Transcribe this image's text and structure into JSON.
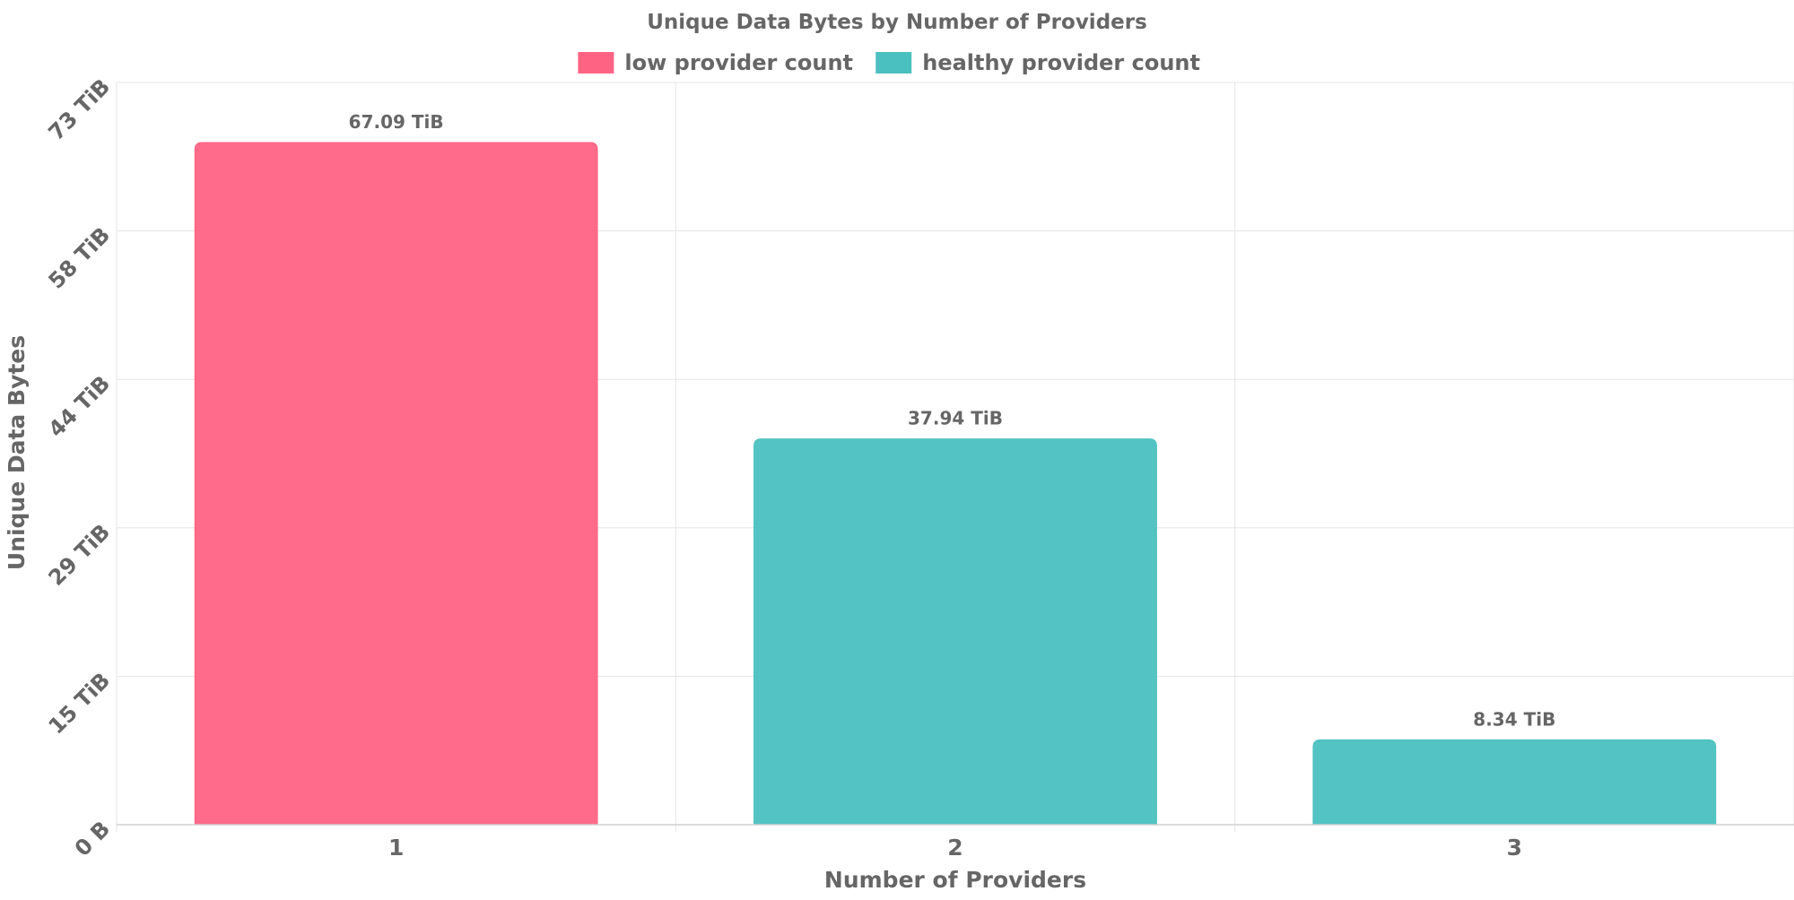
{
  "chart_data": {
    "type": "bar",
    "title": "Unique Data Bytes by Number of Providers",
    "xlabel": "Number of Providers",
    "ylabel": "Unique Data Bytes",
    "categories": [
      "1",
      "2",
      "3"
    ],
    "values": [
      67.09,
      37.94,
      8.34
    ],
    "value_labels": [
      "67.09 TiB",
      "37.94 TiB",
      "8.34 TiB"
    ],
    "value_unit": "TiB",
    "bar_series": [
      "low provider count",
      "healthy provider count",
      "healthy provider count"
    ],
    "series_colors": {
      "low provider count": "#ff6384",
      "healthy provider count": "#4bc0c0"
    },
    "legend": [
      {
        "name": "low provider count",
        "color": "#ff6384"
      },
      {
        "name": "healthy provider count",
        "color": "#4bc0c0"
      }
    ],
    "legend_position": "top-center",
    "ylim": [
      0,
      73
    ],
    "y_ticks": [
      {
        "value": 0,
        "label": "0 B"
      },
      {
        "value": 14.6,
        "label": "15 TiB"
      },
      {
        "value": 29.2,
        "label": "29 TiB"
      },
      {
        "value": 43.8,
        "label": "44 TiB"
      },
      {
        "value": 58.4,
        "label": "58 TiB"
      },
      {
        "value": 73,
        "label": "73 TiB"
      }
    ],
    "grid": true
  }
}
